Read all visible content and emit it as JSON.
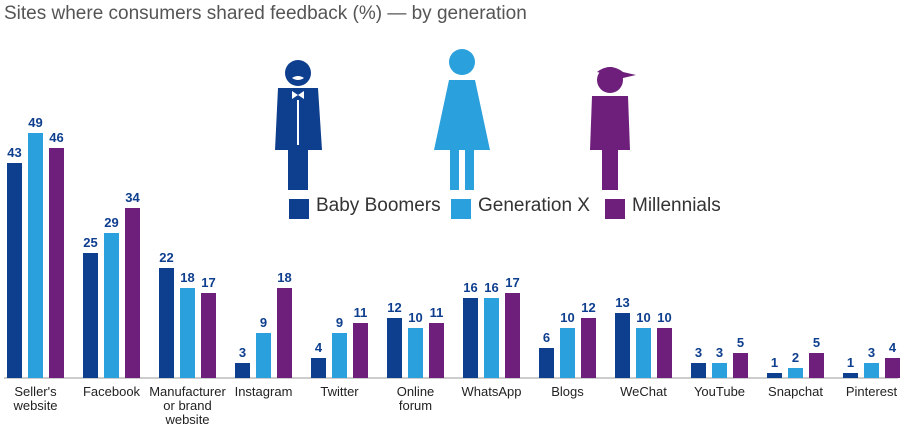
{
  "title": "Sites where consumers shared feedback (%) — by generation",
  "colors": {
    "baby_boomers": "#0e3e8e",
    "generation_x": "#2aa0dc",
    "millennials": "#6e1f7c",
    "axis": "#999999",
    "value_label": "#0e3e8e",
    "category_label": "#222222"
  },
  "legend": [
    {
      "label": "Baby Boomers",
      "color": "#0e3e8e",
      "icon": "man-in-bowtie-mustache-icon"
    },
    {
      "label": "Generation X",
      "color": "#2aa0dc",
      "icon": "woman-in-dress-icon"
    },
    {
      "label": "Millennials",
      "color": "#6e1f7c",
      "icon": "person-in-cap-icon"
    }
  ],
  "chart_data": {
    "type": "bar",
    "title": "Sites where consumers shared feedback (%) — by generation",
    "categories": [
      "Seller's website",
      "Facebook",
      "Manufacturer or brand website",
      "Instagram",
      "Twitter",
      "Online forum",
      "WhatsApp",
      "Blogs",
      "WeChat",
      "YouTube",
      "Snapchat",
      "Pinterest"
    ],
    "category_lines": [
      [
        "Seller's",
        "website"
      ],
      [
        "Facebook"
      ],
      [
        "Manufacturer",
        "or brand",
        "website"
      ],
      [
        "Instagram"
      ],
      [
        "Twitter"
      ],
      [
        "Online",
        "forum"
      ],
      [
        "WhatsApp"
      ],
      [
        "Blogs"
      ],
      [
        "WeChat"
      ],
      [
        "YouTube"
      ],
      [
        "Snapchat"
      ],
      [
        "Pinterest"
      ]
    ],
    "series": [
      {
        "name": "Baby Boomers",
        "color": "#0e3e8e",
        "values": [
          43,
          25,
          22,
          3,
          4,
          12,
          16,
          6,
          13,
          3,
          1,
          1
        ]
      },
      {
        "name": "Generation X",
        "color": "#2aa0dc",
        "values": [
          49,
          29,
          18,
          9,
          9,
          10,
          16,
          10,
          10,
          3,
          2,
          3
        ]
      },
      {
        "name": "Millennials",
        "color": "#6e1f7c",
        "values": [
          46,
          34,
          17,
          18,
          11,
          11,
          17,
          12,
          10,
          5,
          5,
          4
        ]
      }
    ],
    "xlabel": "",
    "ylabel": "",
    "ylim": [
      0,
      50
    ],
    "grid": false,
    "legend_position": "top-right"
  }
}
